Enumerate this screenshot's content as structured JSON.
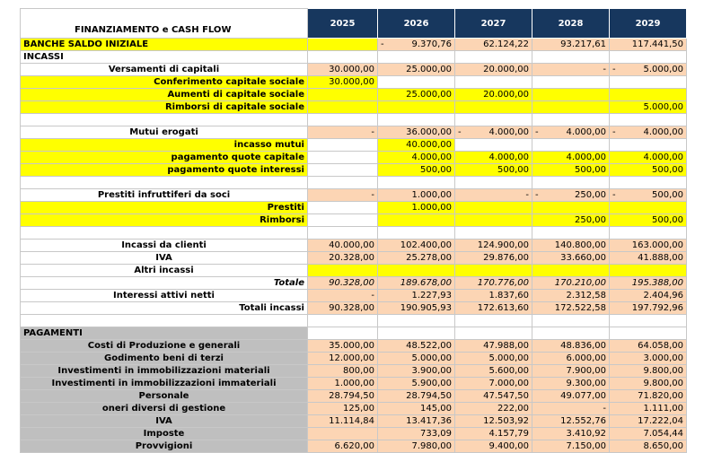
{
  "title": "FINANZIAMENTO e CASH FLOW",
  "years": [
    "2025",
    "2026",
    "2027",
    "2028",
    "2029"
  ],
  "rows": [
    {
      "label": "BANCHE SALDO INIZIALE",
      "align": "left",
      "bg": "y",
      "values": [
        [
          "",
          "",
          "y"
        ],
        [
          "-",
          "9.370,76",
          "o"
        ],
        [
          "",
          "62.124,22",
          "o"
        ],
        [
          "",
          "93.217,61",
          "o"
        ],
        [
          "",
          "117.441,50",
          "o"
        ]
      ]
    },
    {
      "label": "INCASSI",
      "align": "left",
      "bg": "w",
      "values": [
        [
          "",
          "",
          "w"
        ],
        [
          "",
          "",
          "w"
        ],
        [
          "",
          "",
          "w"
        ],
        [
          "",
          "",
          "w"
        ],
        [
          "",
          "",
          "w"
        ]
      ]
    },
    {
      "label": "Versamenti di capitali",
      "align": "center",
      "bg": "w",
      "values": [
        [
          "",
          "30.000,00",
          "o"
        ],
        [
          "",
          "25.000,00",
          "o"
        ],
        [
          "",
          "20.000,00",
          "o"
        ],
        [
          "",
          "-",
          "o"
        ],
        [
          "-",
          "5.000,00",
          "o"
        ]
      ]
    },
    {
      "label": "Conferimento capitale sociale",
      "align": "right",
      "bg": "y",
      "values": [
        [
          "",
          "30.000,00",
          "y"
        ],
        [
          "",
          "",
          "w"
        ],
        [
          "",
          "",
          "w"
        ],
        [
          "",
          "",
          "w"
        ],
        [
          "",
          "",
          "w"
        ]
      ]
    },
    {
      "label": "Aumenti di capitale sociale",
      "align": "right",
      "bg": "y",
      "values": [
        [
          "",
          "",
          "y"
        ],
        [
          "",
          "25.000,00",
          "y"
        ],
        [
          "",
          "20.000,00",
          "y"
        ],
        [
          "",
          "",
          "y"
        ],
        [
          "",
          "",
          "y"
        ]
      ]
    },
    {
      "label": "Rimborsi di capitale sociale",
      "align": "right",
      "bg": "y",
      "values": [
        [
          "",
          "",
          "y"
        ],
        [
          "",
          "",
          "y"
        ],
        [
          "",
          "",
          "y"
        ],
        [
          "",
          "",
          "y"
        ],
        [
          "",
          "5.000,00",
          "y"
        ]
      ]
    },
    {
      "label": "",
      "align": "left",
      "bg": "w",
      "values": [
        [
          "",
          "",
          "w"
        ],
        [
          "",
          "",
          "w"
        ],
        [
          "",
          "",
          "w"
        ],
        [
          "",
          "",
          "w"
        ],
        [
          "",
          "",
          "w"
        ]
      ]
    },
    {
      "label": "Mutui erogati",
      "align": "center",
      "bg": "w",
      "values": [
        [
          "",
          "-",
          "o"
        ],
        [
          "",
          "36.000,00",
          "o"
        ],
        [
          "-",
          "4.000,00",
          "o"
        ],
        [
          "-",
          "4.000,00",
          "o"
        ],
        [
          "-",
          "4.000,00",
          "o"
        ]
      ]
    },
    {
      "label": "incasso mutui",
      "align": "right",
      "bg": "y",
      "values": [
        [
          "",
          "",
          "w"
        ],
        [
          "",
          "40.000,00",
          "y"
        ],
        [
          "",
          "",
          "w"
        ],
        [
          "",
          "",
          "w"
        ],
        [
          "",
          "",
          "w"
        ]
      ]
    },
    {
      "label": "pagamento quote capitale",
      "align": "right",
      "bg": "y",
      "values": [
        [
          "",
          "",
          "w"
        ],
        [
          "",
          "4.000,00",
          "y"
        ],
        [
          "",
          "4.000,00",
          "y"
        ],
        [
          "",
          "4.000,00",
          "y"
        ],
        [
          "",
          "4.000,00",
          "y"
        ]
      ]
    },
    {
      "label": "pagamento quote interessi",
      "align": "right",
      "bg": "y",
      "values": [
        [
          "",
          "",
          "w"
        ],
        [
          "",
          "500,00",
          "y"
        ],
        [
          "",
          "500,00",
          "y"
        ],
        [
          "",
          "500,00",
          "y"
        ],
        [
          "",
          "500,00",
          "y"
        ]
      ]
    },
    {
      "label": "",
      "align": "left",
      "bg": "w",
      "values": [
        [
          "",
          "",
          "w"
        ],
        [
          "",
          "",
          "w"
        ],
        [
          "",
          "",
          "w"
        ],
        [
          "",
          "",
          "w"
        ],
        [
          "",
          "",
          "w"
        ]
      ]
    },
    {
      "label": "Prestiti infruttiferi da soci",
      "align": "center",
      "bg": "w",
      "values": [
        [
          "",
          "-",
          "o"
        ],
        [
          "",
          "1.000,00",
          "o"
        ],
        [
          "",
          "-",
          "o"
        ],
        [
          "-",
          "250,00",
          "o"
        ],
        [
          "-",
          "500,00",
          "o"
        ]
      ]
    },
    {
      "label": "Prestiti",
      "align": "right",
      "bg": "y",
      "values": [
        [
          "",
          "",
          "w"
        ],
        [
          "",
          "1.000,00",
          "y"
        ],
        [
          "",
          "",
          "y"
        ],
        [
          "",
          "",
          "y"
        ],
        [
          "",
          "",
          "y"
        ]
      ]
    },
    {
      "label": "Rimborsi",
      "align": "right",
      "bg": "y",
      "values": [
        [
          "",
          "",
          "w"
        ],
        [
          "",
          "",
          "y"
        ],
        [
          "",
          "",
          "y"
        ],
        [
          "",
          "250,00",
          "y"
        ],
        [
          "",
          "500,00",
          "y"
        ]
      ]
    },
    {
      "label": "",
      "align": "left",
      "bg": "w",
      "values": [
        [
          "",
          "",
          "w"
        ],
        [
          "",
          "",
          "w"
        ],
        [
          "",
          "",
          "w"
        ],
        [
          "",
          "",
          "w"
        ],
        [
          "",
          "",
          "w"
        ]
      ]
    },
    {
      "label": "Incassi da clienti",
      "align": "center",
      "bg": "w",
      "values": [
        [
          "",
          "40.000,00",
          "o"
        ],
        [
          "",
          "102.400,00",
          "o"
        ],
        [
          "",
          "124.900,00",
          "o"
        ],
        [
          "",
          "140.800,00",
          "o"
        ],
        [
          "",
          "163.000,00",
          "o"
        ]
      ]
    },
    {
      "label": "IVA",
      "align": "center",
      "bg": "w",
      "values": [
        [
          "",
          "20.328,00",
          "o"
        ],
        [
          "",
          "25.278,00",
          "o"
        ],
        [
          "",
          "29.876,00",
          "o"
        ],
        [
          "",
          "33.660,00",
          "o"
        ],
        [
          "",
          "41.888,00",
          "o"
        ]
      ]
    },
    {
      "label": "Altri incassi",
      "align": "center",
      "bg": "w",
      "values": [
        [
          "",
          "",
          "y"
        ],
        [
          "",
          "",
          "y"
        ],
        [
          "",
          "",
          "y"
        ],
        [
          "",
          "",
          "y"
        ],
        [
          "",
          "",
          "y"
        ]
      ]
    },
    {
      "label": "Totale",
      "align": "right",
      "italic": true,
      "bg": "w",
      "values": [
        [
          "",
          "90.328,00",
          "o"
        ],
        [
          "",
          "189.678,00",
          "o"
        ],
        [
          "",
          "170.776,00",
          "o"
        ],
        [
          "",
          "170.210,00",
          "o"
        ],
        [
          "",
          "195.388,00",
          "o"
        ]
      ]
    },
    {
      "label": "Interessi attivi netti",
      "align": "center",
      "bg": "w",
      "values": [
        [
          "",
          "-",
          "o"
        ],
        [
          "",
          "1.227,93",
          "o"
        ],
        [
          "",
          "1.837,60",
          "o"
        ],
        [
          "",
          "2.312,58",
          "o"
        ],
        [
          "",
          "2.404,96",
          "o"
        ]
      ]
    },
    {
      "label": "Totali incassi",
      "align": "right",
      "bg": "w",
      "values": [
        [
          "",
          "90.328,00",
          "o"
        ],
        [
          "",
          "190.905,93",
          "o"
        ],
        [
          "",
          "172.613,60",
          "o"
        ],
        [
          "",
          "172.522,58",
          "o"
        ],
        [
          "",
          "197.792,96",
          "o"
        ]
      ]
    },
    {
      "label": "",
      "align": "left",
      "bg": "w",
      "values": [
        [
          "",
          "",
          "w"
        ],
        [
          "",
          "",
          "w"
        ],
        [
          "",
          "",
          "w"
        ],
        [
          "",
          "",
          "w"
        ],
        [
          "",
          "",
          "w"
        ]
      ]
    },
    {
      "label": "PAGAMENTI",
      "align": "left",
      "bg": "g",
      "values": [
        [
          "",
          "",
          "w"
        ],
        [
          "",
          "",
          "w"
        ],
        [
          "",
          "",
          "w"
        ],
        [
          "",
          "",
          "w"
        ],
        [
          "",
          "",
          "w"
        ]
      ]
    },
    {
      "label": "Costi di Produzione e generali",
      "align": "center",
      "bg": "g",
      "values": [
        [
          "",
          "35.000,00",
          "o"
        ],
        [
          "",
          "48.522,00",
          "o"
        ],
        [
          "",
          "47.988,00",
          "o"
        ],
        [
          "",
          "48.836,00",
          "o"
        ],
        [
          "",
          "64.058,00",
          "o"
        ]
      ]
    },
    {
      "label": "Godimento beni di terzi",
      "align": "center",
      "bg": "g",
      "values": [
        [
          "",
          "12.000,00",
          "o"
        ],
        [
          "",
          "5.000,00",
          "o"
        ],
        [
          "",
          "5.000,00",
          "o"
        ],
        [
          "",
          "6.000,00",
          "o"
        ],
        [
          "",
          "3.000,00",
          "o"
        ]
      ]
    },
    {
      "label": "Investimenti in immobilizzazioni materiali",
      "align": "center",
      "bg": "g",
      "values": [
        [
          "",
          "800,00",
          "o"
        ],
        [
          "",
          "3.900,00",
          "o"
        ],
        [
          "",
          "5.600,00",
          "o"
        ],
        [
          "",
          "7.900,00",
          "o"
        ],
        [
          "",
          "9.800,00",
          "o"
        ]
      ]
    },
    {
      "label": "Investimenti in immobilizzazioni immateriali",
      "align": "center",
      "bg": "g",
      "values": [
        [
          "",
          "1.000,00",
          "o"
        ],
        [
          "",
          "5.900,00",
          "o"
        ],
        [
          "",
          "7.000,00",
          "o"
        ],
        [
          "",
          "9.300,00",
          "o"
        ],
        [
          "",
          "9.800,00",
          "o"
        ]
      ]
    },
    {
      "label": "Personale",
      "align": "center",
      "bg": "g",
      "values": [
        [
          "",
          "28.794,50",
          "o"
        ],
        [
          "",
          "28.794,50",
          "o"
        ],
        [
          "",
          "47.547,50",
          "o"
        ],
        [
          "",
          "49.077,00",
          "o"
        ],
        [
          "",
          "71.820,00",
          "o"
        ]
      ]
    },
    {
      "label": "oneri diversi di gestione",
      "align": "center",
      "bg": "g",
      "values": [
        [
          "",
          "125,00",
          "o"
        ],
        [
          "",
          "145,00",
          "o"
        ],
        [
          "",
          "222,00",
          "o"
        ],
        [
          "",
          "-",
          "o"
        ],
        [
          "",
          "1.111,00",
          "o"
        ]
      ]
    },
    {
      "label": "IVA",
      "align": "center",
      "bg": "g",
      "values": [
        [
          "",
          "11.114,84",
          "o"
        ],
        [
          "",
          "13.417,36",
          "o"
        ],
        [
          "",
          "12.503,92",
          "o"
        ],
        [
          "",
          "12.552,76",
          "o"
        ],
        [
          "",
          "17.222,04",
          "o"
        ]
      ]
    },
    {
      "label": "Imposte",
      "align": "center",
      "bg": "g",
      "values": [
        [
          "",
          "",
          "o"
        ],
        [
          "",
          "733,09",
          "o"
        ],
        [
          "",
          "4.157,79",
          "o"
        ],
        [
          "",
          "3.410,92",
          "o"
        ],
        [
          "",
          "7.054,44",
          "o"
        ]
      ]
    },
    {
      "label": "Provvigioni",
      "align": "center",
      "bg": "g",
      "values": [
        [
          "",
          "6.620,00",
          "o"
        ],
        [
          "",
          "7.980,00",
          "o"
        ],
        [
          "",
          "9.400,00",
          "o"
        ],
        [
          "",
          "7.150,00",
          "o"
        ],
        [
          "",
          "8.650,00",
          "o"
        ]
      ]
    }
  ]
}
